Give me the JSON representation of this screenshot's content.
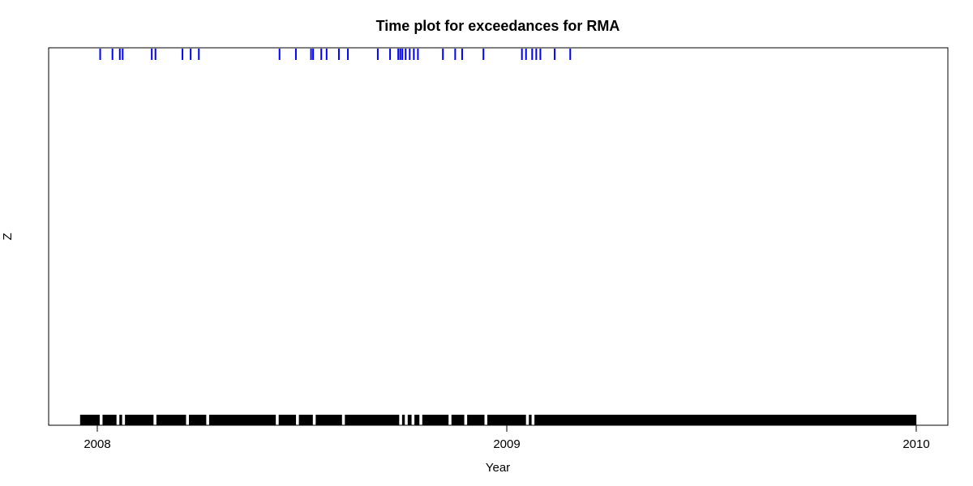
{
  "chart_data": {
    "type": "scatter",
    "title": "Time plot for exceedances for RMA",
    "xlabel": "Year",
    "ylabel": "Z",
    "x_ticks": [
      "2008",
      "2009",
      "2010"
    ],
    "x_range": [
      2007.96,
      2010.07
    ],
    "y_levels": [
      0,
      1
    ],
    "grid": false,
    "legend": "none",
    "series": [
      {
        "color": "#0000ff",
        "level": 1,
        "x": [
          2008.007,
          2008.037,
          2008.055,
          2008.062,
          2008.133,
          2008.142,
          2008.208,
          2008.228,
          2008.248,
          2008.445,
          2008.485,
          2008.522,
          2008.527,
          2008.547,
          2008.56,
          2008.59,
          2008.612,
          2008.685,
          2008.715,
          2008.735,
          2008.74,
          2008.745,
          2008.753,
          2008.763,
          2008.773,
          2008.783,
          2008.844,
          2008.874,
          2008.891,
          2008.943,
          2009.037,
          2009.047,
          2009.062,
          2009.072,
          2009.082,
          2009.117,
          2009.155
        ]
      },
      {
        "color": "#000000",
        "level": 0,
        "x_start": 2007.96,
        "x_end": 2010.0,
        "step_days": 1,
        "gaps": [
          2008.01,
          2008.05,
          2008.065,
          2008.14,
          2008.22,
          2008.27,
          2008.44,
          2008.49,
          2008.53,
          2008.6,
          2008.74,
          2008.755,
          2008.77,
          2008.79,
          2008.86,
          2008.9,
          2008.95,
          2009.05,
          2009.065
        ]
      }
    ]
  }
}
